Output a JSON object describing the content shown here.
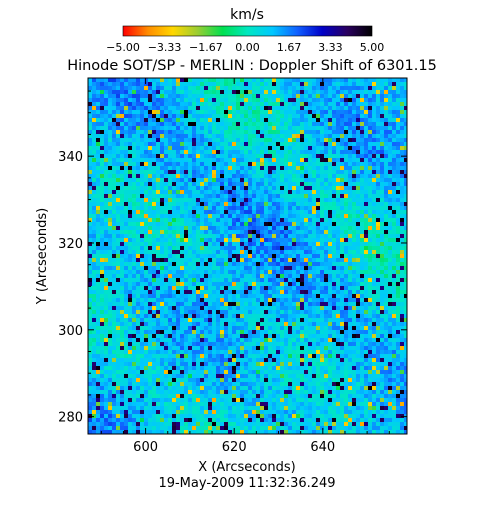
{
  "chart_data": {
    "type": "heatmap",
    "title": "Hinode SOT/SP - MERLIN : Doppler Shift of 6301.15",
    "xlabel": "X (Arcseconds)",
    "ylabel": "Y (Arcseconds)",
    "timestamp": "19-May-2009 11:32:36.249",
    "xlim": [
      587,
      659
    ],
    "ylim": [
      276,
      358
    ],
    "x_ticks": [
      600,
      620,
      640
    ],
    "y_ticks": [
      280,
      300,
      320,
      340
    ],
    "x_tick_labels": [
      "600",
      "620",
      "640"
    ],
    "y_tick_labels": [
      "280",
      "300",
      "320",
      "340"
    ],
    "colorbar": {
      "label": "km/s",
      "range": [
        -5.0,
        5.0
      ],
      "tick_values": [
        -5.0,
        -3.33,
        -1.67,
        0.0,
        1.67,
        3.33,
        5.0
      ],
      "tick_labels": [
        "−5.00",
        "−3.33",
        "−1.67",
        "0.00",
        "1.67",
        "3.33",
        "5.00"
      ],
      "colors": [
        "#ff0000",
        "#ff8c00",
        "#ffd700",
        "#9acd32",
        "#00e050",
        "#00e8c0",
        "#00c8ff",
        "#1060ff",
        "#0000c8",
        "#2a0060",
        "#000000"
      ]
    }
  }
}
